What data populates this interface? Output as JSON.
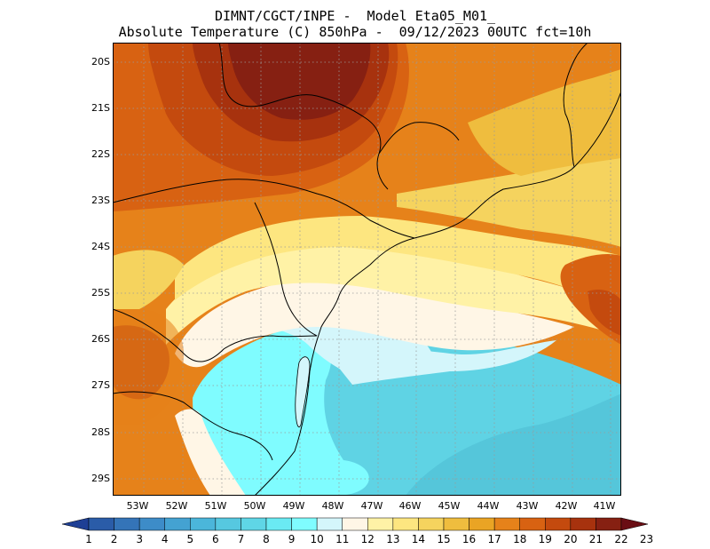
{
  "title": {
    "line1": "DIMNT/CGCT/INPE -  Model Eta05_M01_",
    "line2": "Absolute Temperature (C) 850hPa -  09/12/2023 00UTC fct=10h"
  },
  "map": {
    "lat_labels": [
      "20S",
      "21S",
      "22S",
      "23S",
      "24S",
      "25S",
      "26S",
      "27S",
      "28S",
      "29S"
    ],
    "lon_labels": [
      "53W",
      "52W",
      "51W",
      "50W",
      "49W",
      "48W",
      "47W",
      "46W",
      "45W",
      "44W",
      "43W",
      "42W",
      "41W"
    ],
    "ocean_color": "#5fd3e4",
    "border_color": "#000000",
    "grid_color": "#9a9a9a"
  },
  "colorbar": {
    "labels": [
      "1",
      "2",
      "3",
      "4",
      "5",
      "6",
      "7",
      "8",
      "9",
      "10",
      "11",
      "12",
      "13",
      "14",
      "15",
      "16",
      "17",
      "18",
      "19",
      "20",
      "21",
      "22",
      "23"
    ],
    "colors": [
      "#1e3f95",
      "#2a5ca8",
      "#3474b8",
      "#3d8cc8",
      "#44a2d2",
      "#4bb6da",
      "#56c8e0",
      "#5fd6e6",
      "#6aeaf3",
      "#7ffcff",
      "#d4f6fb",
      "#fff6e6",
      "#fff2a6",
      "#fde680",
      "#f5d35e",
      "#efbd3e",
      "#eaa424",
      "#e6821a",
      "#d86212",
      "#c44a0e",
      "#a7320e",
      "#862012",
      "#6a0e14"
    ]
  }
}
